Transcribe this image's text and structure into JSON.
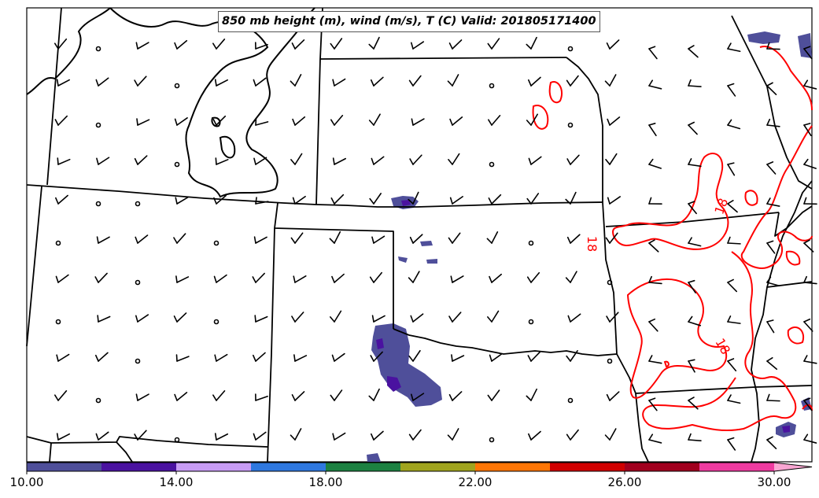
{
  "title": "850 mb height (m), wind (m/s), T (C) Valid: 201805171400",
  "contour_labels": [
    "18",
    "18",
    "18"
  ],
  "colorbar": {
    "tick_labels": [
      "10.00",
      "14.00",
      "18.00",
      "22.00",
      "26.00",
      "30.00"
    ],
    "colors": [
      "#4f4f9a",
      "#4a12a0",
      "#c89cf5",
      "#2f78df",
      "#1c8141",
      "#a0a41e",
      "#ff7605",
      "#d00000",
      "#a1001e",
      "#ef3ba0",
      "#f9a6d2"
    ]
  },
  "temperature_contour_color": "#ff0000",
  "precip_shading_color": "#4f4f9a"
}
